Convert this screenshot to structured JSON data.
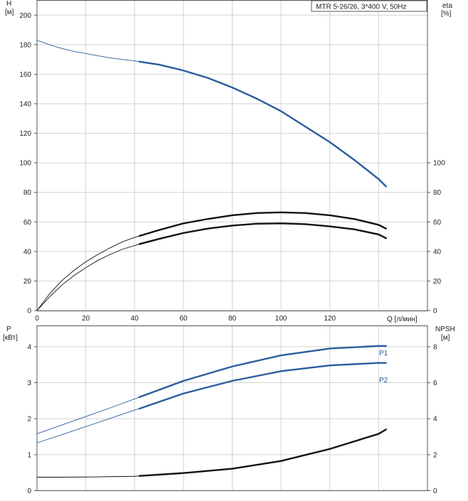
{
  "colors": {
    "blue": "#2a5d9c",
    "black": "#111111",
    "grid": "#d2d2d2",
    "frame": "#555555"
  },
  "chart_data": [
    {
      "type": "line",
      "title": "MTR 5-26/26, 3*400 V, 50Hz",
      "xlabel": "Q [л/мин]",
      "ylabel": "H",
      "ylabel_unit": "[м]",
      "y2label": "eta",
      "y2label_unit": "[%]",
      "xlim": [
        0,
        160
      ],
      "ylim": [
        0,
        210
      ],
      "y2lim": [
        0,
        210
      ],
      "x_ticks": [
        0,
        20,
        40,
        60,
        80,
        100,
        120
      ],
      "y_ticks": [
        0,
        20,
        40,
        60,
        80,
        100,
        120,
        140,
        160,
        180,
        200
      ],
      "y2_ticks": [
        0,
        20,
        40,
        60,
        80,
        100
      ],
      "grid": true,
      "series": [
        {
          "key": "head",
          "axis": "left",
          "color": "blue",
          "x": [
            0,
            5,
            10,
            15,
            20,
            25,
            30,
            35,
            40,
            42
          ],
          "y": [
            183,
            180,
            177.5,
            175.5,
            174,
            172.5,
            171,
            170,
            169,
            168.5
          ],
          "x_bold": [
            42,
            50,
            60,
            70,
            80,
            90,
            100,
            110,
            120,
            130,
            140,
            143
          ],
          "y_bold": [
            168.5,
            166.5,
            162.5,
            157.5,
            151,
            143.5,
            135,
            124.5,
            114,
            102,
            89,
            84
          ]
        },
        {
          "key": "eta-upper",
          "axis": "right",
          "color": "black",
          "x": [
            0,
            5,
            10,
            15,
            20,
            25,
            30,
            35,
            40,
            42
          ],
          "y": [
            0,
            11,
            20,
            27,
            33,
            38,
            42.5,
            46.5,
            49.5,
            50.5
          ],
          "x_bold": [
            42,
            50,
            60,
            70,
            80,
            90,
            100,
            110,
            120,
            130,
            140,
            143
          ],
          "y_bold": [
            50.5,
            54.5,
            59,
            62,
            64.5,
            66,
            66.5,
            66,
            64.5,
            62,
            58,
            55.5
          ]
        },
        {
          "key": "eta-lower",
          "axis": "right",
          "color": "black",
          "x": [
            0,
            5,
            10,
            15,
            20,
            25,
            30,
            35,
            40,
            42
          ],
          "y": [
            0,
            9,
            17,
            23.5,
            29,
            34,
            38,
            41.5,
            44,
            45
          ],
          "x_bold": [
            42,
            50,
            60,
            70,
            80,
            90,
            100,
            110,
            120,
            130,
            140,
            143
          ],
          "y_bold": [
            45,
            48.5,
            52.5,
            55.5,
            57.5,
            58.8,
            59,
            58.5,
            57,
            55,
            51.5,
            49
          ]
        }
      ]
    },
    {
      "type": "line",
      "xlim": [
        0,
        160
      ],
      "ylabel": "P",
      "ylabel_unit": "[кВт]",
      "y2label": "NPSH",
      "y2label_unit": "[м]",
      "ylim": [
        0,
        4.58
      ],
      "y2lim": [
        0,
        9.16
      ],
      "y_ticks": [
        0,
        1,
        2,
        3,
        4
      ],
      "y2_ticks": [
        0,
        2,
        4,
        6,
        8
      ],
      "grid": true,
      "series": [
        {
          "key": "p1",
          "name": "P1",
          "axis": "left",
          "color": "blue",
          "x": [
            0,
            10,
            20,
            30,
            40,
            42
          ],
          "y": [
            1.58,
            1.82,
            2.06,
            2.3,
            2.55,
            2.6
          ],
          "x_bold": [
            42,
            60,
            80,
            100,
            120,
            140,
            143
          ],
          "y_bold": [
            2.6,
            3.05,
            3.45,
            3.76,
            3.95,
            4.02,
            4.02
          ]
        },
        {
          "key": "p2",
          "name": "P2",
          "axis": "left",
          "color": "blue",
          "x": [
            0,
            10,
            20,
            30,
            40,
            42
          ],
          "y": [
            1.33,
            1.55,
            1.78,
            2.01,
            2.24,
            2.28
          ],
          "x_bold": [
            42,
            60,
            80,
            100,
            120,
            140,
            143
          ],
          "y_bold": [
            2.28,
            2.7,
            3.05,
            3.32,
            3.48,
            3.55,
            3.55
          ]
        },
        {
          "key": "npsh",
          "axis": "right",
          "color": "black",
          "x": [
            0,
            10,
            20,
            30,
            40,
            42
          ],
          "y": [
            0.75,
            0.75,
            0.76,
            0.78,
            0.8,
            0.82
          ],
          "x_bold": [
            42,
            60,
            80,
            100,
            120,
            140,
            143
          ],
          "y_bold": [
            0.82,
            0.98,
            1.22,
            1.65,
            2.32,
            3.16,
            3.4
          ]
        }
      ]
    }
  ]
}
